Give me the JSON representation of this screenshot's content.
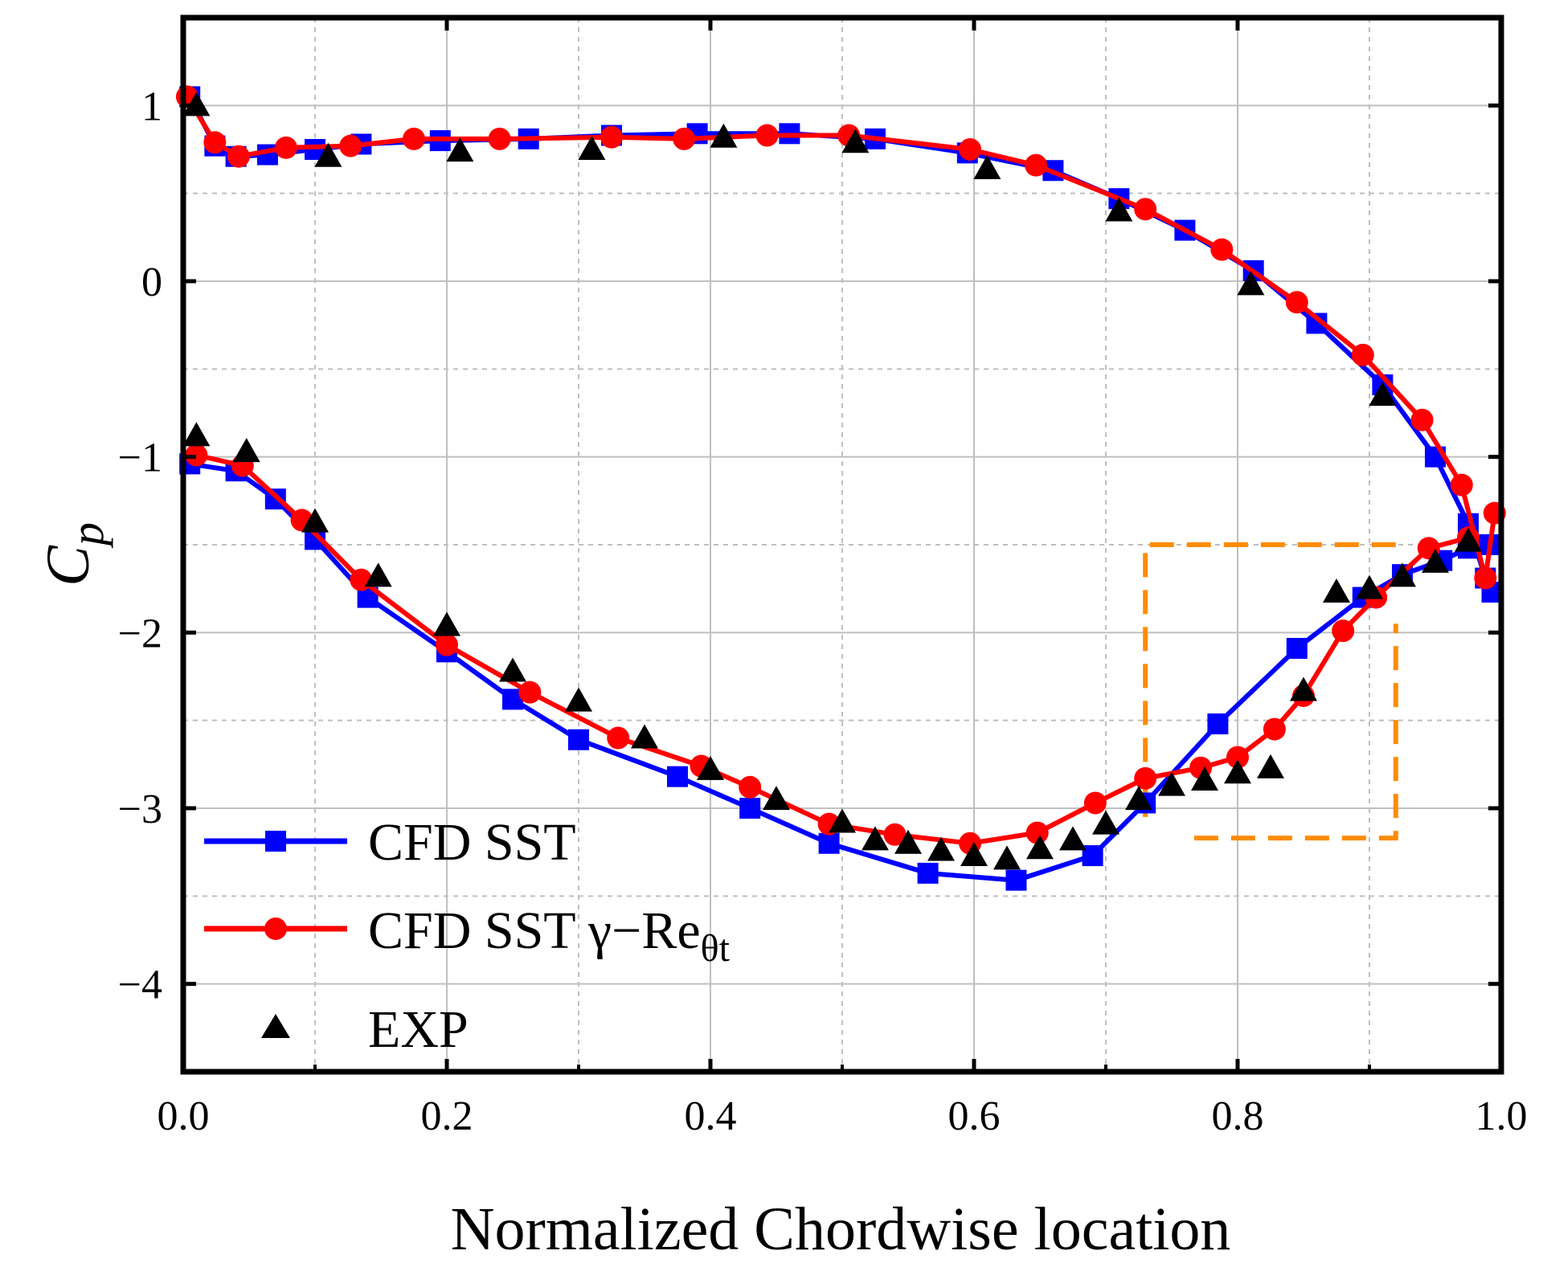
{
  "chart_data": {
    "type": "line",
    "title": "",
    "xlabel": "Normalized Chordwise location",
    "ylabel": "C",
    "ylabel_subscript": "p",
    "xlim": [
      0.0,
      1.0
    ],
    "ylim": [
      -4.5,
      1.5
    ],
    "x_ticks": [
      0.0,
      0.2,
      0.4,
      0.6,
      0.8,
      1.0
    ],
    "x_tick_labels": [
      "0.0",
      "0.2",
      "0.4",
      "0.6",
      "0.8",
      "1.0"
    ],
    "y_ticks": [
      1,
      0,
      -1,
      -2,
      -3,
      -4
    ],
    "y_tick_labels": [
      "1",
      "0",
      "−1",
      "−2",
      "−3",
      "−4"
    ],
    "grid": true,
    "legend_position": "bottom-left",
    "colors": {
      "sst": "#0000ff",
      "gamma": "#ff0000",
      "exp": "#000000",
      "box": "#ff8c00",
      "grid": "#bfbfbf"
    },
    "series": [
      {
        "name": "CFD SST",
        "legend_label": "CFD SST",
        "marker": "square",
        "upper_x": [
          0.005,
          0.024,
          0.04,
          0.064,
          0.1,
          0.135,
          0.195,
          0.262,
          0.325,
          0.39,
          0.46,
          0.525,
          0.595,
          0.66,
          0.71,
          0.76,
          0.812,
          0.86,
          0.91,
          0.95,
          0.975,
          0.988,
          0.993
        ],
        "upper_y": [
          1.05,
          0.77,
          0.71,
          0.72,
          0.75,
          0.78,
          0.8,
          0.81,
          0.83,
          0.84,
          0.84,
          0.81,
          0.73,
          0.63,
          0.47,
          0.29,
          0.06,
          -0.24,
          -0.59,
          -1.0,
          -1.38,
          -1.69,
          -1.77
        ],
        "lower_x": [
          0.005,
          0.04,
          0.07,
          0.1,
          0.14,
          0.2,
          0.25,
          0.3,
          0.375,
          0.43,
          0.49,
          0.565,
          0.632,
          0.69,
          0.73,
          0.785,
          0.845,
          0.895,
          0.925,
          0.955,
          0.975,
          0.99
        ],
        "lower_y": [
          -1.04,
          -1.08,
          -1.24,
          -1.47,
          -1.8,
          -2.11,
          -2.38,
          -2.61,
          -2.82,
          -3.0,
          -3.2,
          -3.37,
          -3.41,
          -3.27,
          -2.97,
          -2.52,
          -2.09,
          -1.8,
          -1.67,
          -1.59,
          -1.52,
          -1.5
        ]
      },
      {
        "name": "CFD SST gamma-Re_theta_t",
        "legend_label": "CFD SST γ−Re",
        "legend_subscript": "θt",
        "marker": "circle",
        "upper_x": [
          0.003,
          0.024,
          0.042,
          0.078,
          0.127,
          0.175,
          0.24,
          0.325,
          0.38,
          0.443,
          0.505,
          0.597,
          0.647,
          0.73,
          0.788,
          0.845,
          0.895,
          0.94,
          0.97,
          0.988,
          0.995
        ],
        "upper_y": [
          1.05,
          0.79,
          0.71,
          0.76,
          0.77,
          0.81,
          0.81,
          0.82,
          0.81,
          0.83,
          0.83,
          0.75,
          0.66,
          0.41,
          0.18,
          -0.12,
          -0.42,
          -0.79,
          -1.16,
          -1.69,
          -1.32
        ],
        "lower_x": [
          0.01,
          0.045,
          0.09,
          0.135,
          0.2,
          0.263,
          0.33,
          0.393,
          0.43,
          0.49,
          0.54,
          0.597,
          0.648,
          0.692,
          0.73,
          0.772,
          0.8,
          0.828,
          0.85,
          0.88,
          0.905,
          0.945,
          0.975
        ],
        "lower_y": [
          -0.99,
          -1.05,
          -1.36,
          -1.7,
          -2.07,
          -2.34,
          -2.6,
          -2.76,
          -2.88,
          -3.09,
          -3.15,
          -3.2,
          -3.14,
          -2.97,
          -2.83,
          -2.77,
          -2.71,
          -2.55,
          -2.36,
          -1.99,
          -1.8,
          -1.52,
          -1.46
        ]
      },
      {
        "name": "EXP",
        "legend_label": "EXP",
        "marker": "triangle",
        "x": [
          0.01,
          0.11,
          0.21,
          0.31,
          0.41,
          0.51,
          0.61,
          0.71,
          0.81,
          0.91,
          0.975,
          0.01,
          0.048,
          0.1,
          0.148,
          0.2,
          0.25,
          0.3,
          0.35,
          0.4,
          0.45,
          0.5,
          0.525,
          0.55,
          0.575,
          0.6,
          0.625,
          0.65,
          0.675,
          0.7,
          0.725,
          0.75,
          0.775,
          0.8,
          0.825,
          0.85,
          0.875,
          0.9,
          0.925,
          0.95
        ],
        "y": [
          1.0,
          0.71,
          0.74,
          0.75,
          0.82,
          0.79,
          0.64,
          0.4,
          -0.02,
          -0.65,
          -1.48,
          -0.88,
          -0.97,
          -1.37,
          -1.68,
          -1.96,
          -2.22,
          -2.39,
          -2.6,
          -2.78,
          -2.95,
          -3.08,
          -3.18,
          -3.2,
          -3.24,
          -3.27,
          -3.29,
          -3.23,
          -3.18,
          -3.09,
          -2.95,
          -2.87,
          -2.84,
          -2.8,
          -2.77,
          -2.33,
          -1.77,
          -1.75,
          -1.68,
          -1.6
        ]
      }
    ],
    "annotation_box": {
      "style": "dashed",
      "x_range": [
        0.73,
        0.92
      ],
      "y_range": [
        -3.17,
        -1.5
      ]
    }
  }
}
